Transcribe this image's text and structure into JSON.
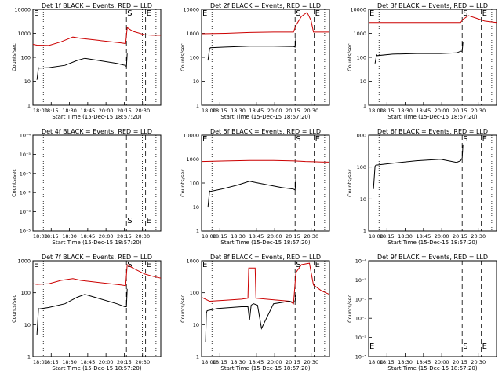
{
  "chart_data": [
    {
      "type": "line",
      "title": "Det 1f BLACK = Events, RED = LLD",
      "xlabel": "Start Time (15-Dec-15 18:57:20)",
      "ylabel": "Counts/sec",
      "yscale": "log",
      "ylim": [
        1,
        12000
      ],
      "xlim": [
        "18:00",
        "20:40"
      ],
      "x_ticks": [
        "18:00",
        "18:15",
        "18:30",
        "18:45",
        "20:00",
        "20:15",
        "20:30"
      ],
      "y_ticks": [
        "1",
        "10",
        "100",
        "1000",
        "10000"
      ],
      "markers": [
        {
          "label": "E",
          "time": "18:00"
        },
        {
          "label": "S",
          "time": "19:57"
        },
        {
          "label": "E",
          "time": "20:21"
        }
      ],
      "dotted_lines": [
        "18:13",
        "20:17",
        "20:34"
      ],
      "series": [
        {
          "color": "#cc0000",
          "x": [
            "18:00",
            "18:05",
            "18:20",
            "18:35",
            "18:50",
            "19:00",
            "19:50",
            "19:56",
            "19:58",
            "20:05",
            "20:20",
            "20:30",
            "20:40"
          ],
          "y": [
            390,
            360,
            350,
            500,
            800,
            700,
            450,
            420,
            2000,
            1400,
            1000,
            950,
            950
          ]
        },
        {
          "color": "#000000",
          "x": [
            "18:05",
            "18:07",
            "18:08",
            "18:20",
            "18:40",
            "18:55",
            "19:05",
            "19:45",
            "19:55",
            "19:57",
            "19:58"
          ],
          "y": [
            12,
            40,
            38,
            40,
            50,
            80,
            100,
            60,
            50,
            45,
            160
          ]
        }
      ]
    },
    {
      "type": "line",
      "title": "Det 2f BLACK = Events, RED = LLD",
      "xlabel": "Start Time (15-Dec-15 18:57:20)",
      "ylabel": "Counts/sec",
      "yscale": "log",
      "ylim": [
        1,
        12000
      ],
      "xlim": [
        "18:00",
        "20:40"
      ],
      "x_ticks": [
        "18:00",
        "18:15",
        "18:30",
        "18:45",
        "20:00",
        "20:15",
        "20:30"
      ],
      "y_ticks": [
        "1",
        "10",
        "100",
        "1000",
        "10000"
      ],
      "markers": [
        {
          "label": "E",
          "time": "18:00"
        },
        {
          "label": "S",
          "time": "19:57"
        },
        {
          "label": "E",
          "time": "20:21"
        }
      ],
      "dotted_lines": [
        "18:13",
        "20:17",
        "20:34"
      ],
      "series": [
        {
          "color": "#cc0000",
          "x": [
            "18:00",
            "18:30",
            "19:00",
            "19:30",
            "19:55",
            "19:58",
            "20:05",
            "20:12",
            "20:17",
            "20:20",
            "20:30",
            "20:40"
          ],
          "y": [
            1100,
            1150,
            1250,
            1300,
            1300,
            2500,
            6000,
            9000,
            4000,
            1300,
            1300,
            1300
          ]
        },
        {
          "color": "#000000",
          "x": [
            "18:08",
            "18:10",
            "18:11",
            "18:30",
            "19:00",
            "19:30",
            "19:50",
            "19:55",
            "19:57",
            "19:58"
          ],
          "y": [
            80,
            250,
            280,
            300,
            330,
            330,
            320,
            320,
            300,
            700
          ]
        }
      ]
    },
    {
      "type": "line",
      "title": "Det 3f BLACK = Events, RED = LLD",
      "xlabel": "Start Time (15-Dec-15 18:57:20)",
      "ylabel": "Counts/sec",
      "yscale": "log",
      "ylim": [
        1,
        12000
      ],
      "xlim": [
        "18:00",
        "20:40"
      ],
      "x_ticks": [
        "18:00",
        "18:15",
        "18:30",
        "18:45",
        "20:00",
        "20:15",
        "20:30"
      ],
      "y_ticks": [
        "1",
        "10",
        "100",
        "1000",
        "10000"
      ],
      "markers": [
        {
          "label": "E",
          "time": "18:00"
        },
        {
          "label": "S",
          "time": "19:57"
        },
        {
          "label": "E",
          "time": "20:21"
        }
      ],
      "dotted_lines": [
        "18:13",
        "20:17",
        "20:34"
      ],
      "series": [
        {
          "color": "#cc0000",
          "x": [
            "18:00",
            "18:30",
            "19:00",
            "19:30",
            "19:55",
            "19:58",
            "20:05",
            "20:15",
            "20:25",
            "20:40"
          ],
          "y": [
            3300,
            3300,
            3300,
            3300,
            3300,
            4500,
            6500,
            5000,
            3800,
            3300
          ]
        },
        {
          "color": "#000000",
          "x": [
            "18:08",
            "18:10",
            "18:11",
            "18:30",
            "19:00",
            "19:30",
            "19:50",
            "19:55",
            "19:57",
            "19:58"
          ],
          "y": [
            60,
            140,
            130,
            150,
            160,
            160,
            170,
            200,
            200,
            500
          ]
        }
      ]
    },
    {
      "type": "line",
      "title": "Det 4f BLACK = Events, RED = LLD",
      "xlabel": "Start Time (15-Dec-15 18:57:20)",
      "ylabel": "Counts/sec",
      "yscale": "log",
      "ylim": [
        1e-05,
        0.0001
      ],
      "xlim": [
        "18:00",
        "20:40"
      ],
      "x_ticks": [
        "18:00",
        "18:15",
        "18:30",
        "18:45",
        "20:00",
        "20:15",
        "20:30"
      ],
      "y_ticks": [
        "10⁻⁵",
        "10⁻⁵",
        "10⁻⁵",
        "10⁻⁵",
        "10⁻⁵",
        "10⁻⁴"
      ],
      "markers": [
        {
          "label": "S",
          "time": "19:57"
        },
        {
          "label": "E",
          "time": "20:21"
        }
      ],
      "dotted_lines": [
        "18:13",
        "20:17",
        "20:34"
      ],
      "series": []
    },
    {
      "type": "line",
      "title": "Det 5f BLACK = Events, RED = LLD",
      "xlabel": "Start Time (15-Dec-15 18:57:20)",
      "ylabel": "Counts/sec",
      "yscale": "log",
      "ylim": [
        1,
        12000
      ],
      "xlim": [
        "18:00",
        "20:40"
      ],
      "x_ticks": [
        "18:00",
        "18:15",
        "18:30",
        "18:45",
        "20:00",
        "20:15",
        "20:30"
      ],
      "y_ticks": [
        "1",
        "10",
        "100",
        "1000",
        "10000"
      ],
      "markers": [
        {
          "label": "E",
          "time": "18:00"
        },
        {
          "label": "S",
          "time": "19:57"
        },
        {
          "label": "E",
          "time": "20:21"
        }
      ],
      "dotted_lines": [
        "18:13",
        "20:17",
        "20:34"
      ],
      "series": [
        {
          "color": "#cc0000",
          "x": [
            "18:00",
            "18:30",
            "19:00",
            "19:30",
            "19:57",
            "20:10",
            "20:20",
            "20:30",
            "20:40"
          ],
          "y": [
            900,
            950,
            1000,
            1000,
            950,
            900,
            880,
            860,
            850
          ]
        },
        {
          "color": "#000000",
          "x": [
            "18:08",
            "18:10",
            "18:11",
            "18:25",
            "18:45",
            "19:00",
            "19:10",
            "19:40",
            "19:55",
            "19:57",
            "19:58"
          ],
          "y": [
            10,
            50,
            48,
            60,
            90,
            130,
            110,
            70,
            60,
            55,
            160
          ]
        }
      ]
    },
    {
      "type": "line",
      "title": "Det 6f BLACK = Events, RED = LLD",
      "xlabel": "Start Time (15-Dec-15 18:57:20)",
      "ylabel": "Counts/sec",
      "yscale": "log",
      "ylim": [
        1,
        1200
      ],
      "xlim": [
        "18:00",
        "20:40"
      ],
      "x_ticks": [
        "18:00",
        "18:15",
        "18:30",
        "18:45",
        "20:00",
        "20:15",
        "20:30"
      ],
      "y_ticks": [
        "1",
        "10",
        "100",
        "1000"
      ],
      "markers": [
        {
          "label": "S",
          "time": "19:57"
        },
        {
          "label": "E",
          "time": "20:21"
        }
      ],
      "dotted_lines": [
        "18:13",
        "20:17",
        "20:34"
      ],
      "series": [
        {
          "color": "#000000",
          "x": [
            "18:06",
            "18:08",
            "18:09",
            "18:30",
            "19:00",
            "19:30",
            "19:50",
            "19:55",
            "19:57",
            "19:58"
          ],
          "y": [
            22,
            120,
            130,
            150,
            180,
            200,
            160,
            180,
            220,
            600
          ]
        }
      ]
    },
    {
      "type": "line",
      "title": "Det 7f BLACK = Events, RED = LLD",
      "xlabel": "Start Time (15-Dec-15 18:57:20)",
      "ylabel": "Counts/sec",
      "yscale": "log",
      "ylim": [
        1,
        1200
      ],
      "xlim": [
        "18:00",
        "20:40"
      ],
      "x_ticks": [
        "18:00",
        "18:15",
        "18:30",
        "18:45",
        "20:00",
        "20:15",
        "20:30"
      ],
      "y_ticks": [
        "1",
        "10",
        "100",
        "1000"
      ],
      "markers": [
        {
          "label": "E",
          "time": "18:00"
        },
        {
          "label": "S",
          "time": "19:57"
        },
        {
          "label": "E",
          "time": "20:21"
        }
      ],
      "dotted_lines": [
        "18:13",
        "20:17",
        "20:34"
      ],
      "series": [
        {
          "color": "#cc0000",
          "x": [
            "18:00",
            "18:05",
            "18:20",
            "18:35",
            "18:50",
            "19:00",
            "19:50",
            "19:56",
            "19:58",
            "20:05",
            "20:20",
            "20:30",
            "20:40"
          ],
          "y": [
            220,
            210,
            220,
            280,
            320,
            280,
            200,
            190,
            900,
            700,
            450,
            380,
            330
          ]
        },
        {
          "color": "#000000",
          "x": [
            "18:05",
            "18:07",
            "18:08",
            "18:20",
            "18:40",
            "18:55",
            "19:05",
            "19:45",
            "19:55",
            "19:57",
            "19:58"
          ],
          "y": [
            5,
            35,
            34,
            38,
            50,
            80,
            100,
            50,
            40,
            40,
            150
          ]
        }
      ]
    },
    {
      "type": "line",
      "title": "Det 8f BLACK = Events, RED = LLD",
      "xlabel": "Start Time (15-Dec-15 18:57:20)",
      "ylabel": "Counts/sec",
      "yscale": "log",
      "ylim": [
        1,
        1200
      ],
      "xlim": [
        "18:00",
        "20:40"
      ],
      "x_ticks": [
        "18:00",
        "18:15",
        "18:30",
        "18:45",
        "20:00",
        "20:15",
        "20:30"
      ],
      "y_ticks": [
        "1",
        "10",
        "100",
        "1000"
      ],
      "markers": [
        {
          "label": "E",
          "time": "18:00"
        },
        {
          "label": "S",
          "time": "19:57"
        },
        {
          "label": "E",
          "time": "20:21"
        }
      ],
      "dotted_lines": [
        "18:13",
        "20:17",
        "20:34"
      ],
      "series": [
        {
          "color": "#cc0000",
          "x": [
            "18:00",
            "18:10",
            "18:30",
            "18:50",
            "18:58",
            "18:59",
            "19:07",
            "19:08",
            "19:50",
            "19:55",
            "19:58",
            "20:05",
            "20:15",
            "20:20",
            "20:30",
            "20:40"
          ],
          "y": [
            80,
            60,
            65,
            70,
            75,
            700,
            700,
            75,
            60,
            50,
            500,
            900,
            1000,
            200,
            130,
            100
          ]
        },
        {
          "color": "#000000",
          "x": [
            "18:05",
            "18:06",
            "18:07",
            "18:20",
            "18:50",
            "18:58",
            "19:00",
            "19:02",
            "19:05",
            "19:10",
            "19:15",
            "19:30",
            "19:50",
            "19:55",
            "19:57",
            "19:58"
          ],
          "y": [
            3,
            25,
            30,
            35,
            40,
            40,
            15,
            45,
            50,
            45,
            8,
            50,
            60,
            55,
            60,
            100
          ]
        }
      ]
    },
    {
      "type": "line",
      "title": "Det 9f BLACK = Events, RED = LLD",
      "xlabel": "Start Time (15-Dec-15 18:57:20)",
      "ylabel": "Counts/sec",
      "yscale": "log",
      "ylim": [
        1e-05,
        0.0001
      ],
      "xlim": [
        "18:00",
        "20:40"
      ],
      "x_ticks": [
        "18:00",
        "18:15",
        "18:30",
        "18:45",
        "20:00",
        "20:15",
        "20:30"
      ],
      "y_ticks": [
        "10⁻⁵",
        "10⁻⁵",
        "10⁻⁵",
        "10⁻⁵",
        "10⁻⁵",
        "10⁻⁴"
      ],
      "markers": [
        {
          "label": "E",
          "time": "18:00"
        },
        {
          "label": "S",
          "time": "19:57"
        },
        {
          "label": "E",
          "time": "20:21"
        }
      ],
      "dotted_lines": [],
      "series": []
    }
  ]
}
